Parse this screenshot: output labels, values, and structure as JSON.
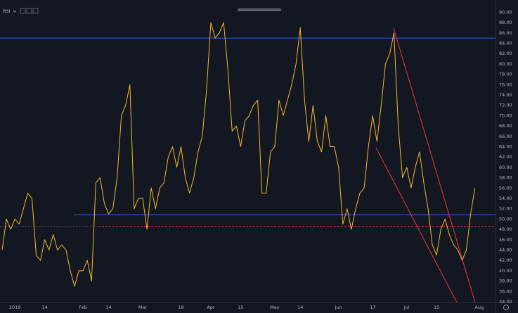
{
  "chart_data": {
    "type": "line",
    "indicator": "RSI",
    "categories": [
      null,
      null,
      null,
      "2019",
      null,
      null,
      null,
      null,
      null,
      null,
      "14",
      null,
      null,
      null,
      null,
      null,
      null,
      null,
      null,
      "Feb",
      null,
      null,
      null,
      null,
      null,
      "14",
      null,
      null,
      null,
      null,
      null,
      null,
      null,
      "Mar",
      null,
      null,
      null,
      null,
      null,
      null,
      null,
      null,
      "18",
      null,
      null,
      null,
      null,
      null,
      null,
      "Apr",
      null,
      null,
      null,
      null,
      null,
      null,
      "15",
      null,
      null,
      null,
      null,
      null,
      null,
      null,
      "May",
      null,
      null,
      null,
      null,
      null,
      "14",
      null,
      null,
      null,
      null,
      null,
      null,
      null,
      null,
      "Jun",
      null,
      null,
      null,
      null,
      null,
      null,
      null,
      "17",
      null,
      null,
      null,
      null,
      null,
      null,
      null,
      "Jul",
      null,
      null,
      null,
      null,
      null,
      null,
      "15",
      null,
      null,
      null,
      null,
      null,
      null,
      null,
      null,
      null,
      "Aug"
    ],
    "series": [
      {
        "name": "RSI",
        "color": "#f5b829",
        "values": [
          44,
          50,
          48,
          50,
          49,
          52,
          55,
          54,
          43,
          42,
          46,
          44,
          47,
          44,
          45,
          44,
          40,
          37,
          40,
          40,
          42,
          38,
          57,
          58,
          53,
          51,
          52,
          58,
          70,
          72,
          76,
          52,
          54,
          54,
          48,
          56,
          52,
          56,
          57,
          62,
          64,
          60,
          64,
          58,
          55,
          58,
          63,
          66,
          75,
          88,
          85,
          86,
          88,
          79,
          67,
          68,
          64,
          69,
          70,
          72,
          73,
          55,
          55,
          63,
          64,
          73,
          70,
          73,
          76,
          80,
          87,
          73,
          65,
          72,
          65,
          63,
          70,
          64,
          64,
          60,
          49,
          52,
          48,
          52,
          55,
          56,
          64,
          70,
          65,
          72,
          80,
          82,
          86,
          68,
          58,
          60,
          56,
          60,
          63,
          57,
          52,
          45,
          43,
          48,
          50,
          47,
          45,
          44,
          42,
          44,
          51,
          56,
          null
        ]
      }
    ],
    "levels": [
      {
        "value": 85,
        "color": "#2962ff",
        "dash": false
      },
      {
        "value": 50.8,
        "color": "#2962ff",
        "dash": false
      },
      {
        "value": 48.5,
        "color": "#f23645",
        "dash": true
      }
    ],
    "ylim": [
      34,
      91
    ],
    "yticks": [
      {
        "value": 90,
        "label": "90.00"
      },
      {
        "value": 88,
        "label": "88.00"
      },
      {
        "value": 86,
        "label": "86.00"
      },
      {
        "value": 84,
        "label": "84.00"
      },
      {
        "value": 82,
        "label": "82.00"
      },
      {
        "value": 80,
        "label": "80.00"
      },
      {
        "value": 78,
        "label": "78.00"
      },
      {
        "value": 76,
        "label": "76.00"
      },
      {
        "value": 74,
        "label": "74.00"
      },
      {
        "value": 72,
        "label": "72.00"
      },
      {
        "value": 70,
        "label": "70.00"
      },
      {
        "value": 68,
        "label": "68.00"
      },
      {
        "value": 66,
        "label": "66.00"
      },
      {
        "value": 64,
        "label": "64.00"
      },
      {
        "value": 62,
        "label": "62.00"
      },
      {
        "value": 60,
        "label": "60.00"
      },
      {
        "value": 58,
        "label": "58.00"
      },
      {
        "value": 56,
        "label": "56.00"
      },
      {
        "value": 54,
        "label": "54.00"
      },
      {
        "value": 52,
        "label": "52.00"
      },
      {
        "value": 50,
        "label": "50.00"
      },
      {
        "value": 48,
        "label": "48.00"
      },
      {
        "value": 46,
        "label": "46.00"
      },
      {
        "value": 44,
        "label": "44.00"
      },
      {
        "value": 42,
        "label": "42.00"
      },
      {
        "value": 40,
        "label": "40.00"
      },
      {
        "value": 38,
        "label": "38.00"
      },
      {
        "value": 36,
        "label": "36.00"
      },
      {
        "value": 34,
        "label": "34.00"
      }
    ],
    "grid": false
  }
}
